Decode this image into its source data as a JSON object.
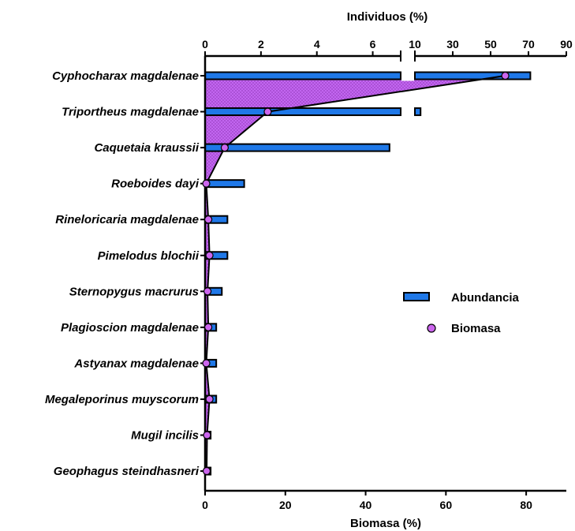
{
  "chart_data": {
    "type": "bar",
    "categories": [
      "Cyphocharax magdalenae",
      "Triportheus magdalenae",
      "Caquetaia kraussii",
      "Roeboides dayi",
      "Rineloricaria magdalenae",
      "Pimelodus blochii",
      "Sternopygus macrurus",
      "Plagioscion magdalenae",
      "Astyanax magdalenae",
      "Megaleporinus muyscorum",
      "Mugil incilis",
      "Geophagus steindhasneri"
    ],
    "series": [
      {
        "name": "Abundancia",
        "axis": "top",
        "values": [
          71,
          13,
          6.6,
          1.4,
          0.8,
          0.8,
          0.6,
          0.4,
          0.4,
          0.4,
          0.2,
          0.2
        ],
        "color": "#1f78e8"
      },
      {
        "name": "Biomasa",
        "axis": "bottom",
        "values": [
          74.8,
          15.6,
          4.9,
          0.3,
          0.8,
          1.1,
          0.6,
          0.8,
          0.3,
          1.1,
          0.5,
          0.4
        ],
        "color": "#cc66ee",
        "fill": "#bb55ee"
      }
    ],
    "top_axis": {
      "label": "Individuos (%)",
      "segment1": {
        "range": [
          0,
          7
        ],
        "ticks": [
          0,
          2,
          4,
          6
        ]
      },
      "segment2": {
        "range": [
          10,
          90
        ],
        "ticks": [
          10,
          30,
          50,
          70,
          90
        ]
      }
    },
    "bottom_axis": {
      "label": "Biomasa (%)",
      "range": [
        0,
        90
      ],
      "ticks": [
        0,
        20,
        40,
        60,
        80
      ]
    },
    "legend": {
      "placement": "right",
      "items": [
        "Abundancia",
        "Biomasa"
      ]
    }
  }
}
